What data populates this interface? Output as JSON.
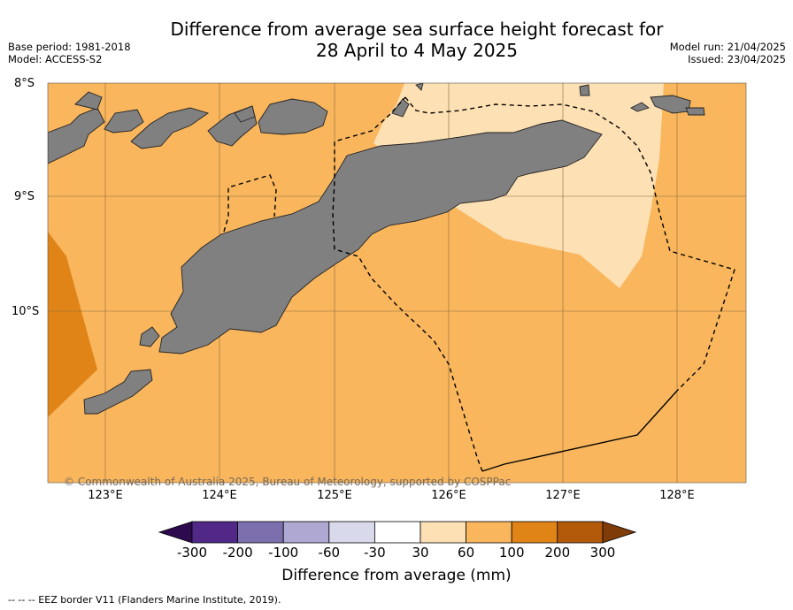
{
  "title": {
    "line1": "Difference from average sea surface height forecast for",
    "line2": "28 April to 4 May 2025"
  },
  "meta": {
    "base_period": "Base period: 1981-2018",
    "model": "Model: ACCESS-S2",
    "model_run": "Model run: 21/04/2025",
    "issued": "Issued: 23/04/2025"
  },
  "map": {
    "lat_labels": [
      "8°S",
      "9°S",
      "10°S"
    ],
    "lon_labels": [
      "123°E",
      "124°E",
      "125°E",
      "126°E",
      "127°E",
      "128°E"
    ],
    "land_color": "#808080",
    "copyright": "© Commonwealth of Australia 2025, Bureau of Meteorology, supported by COSPPac"
  },
  "colorbar": {
    "ticks": [
      "-300",
      "-200",
      "-100",
      "-60",
      "-30",
      "30",
      "60",
      "100",
      "200",
      "300"
    ],
    "colors": [
      "#2d0a4e",
      "#512888",
      "#7d6fad",
      "#afa8d2",
      "#d9d9ec",
      "#ffffff",
      "#fde0b3",
      "#f9b65d",
      "#e08418",
      "#b25a0a",
      "#7f3b08"
    ],
    "title": "Difference from average (mm)"
  },
  "legend": {
    "eez": "--  --  -- EEZ border V11 (Flanders Marine Institute, 2019)."
  }
}
